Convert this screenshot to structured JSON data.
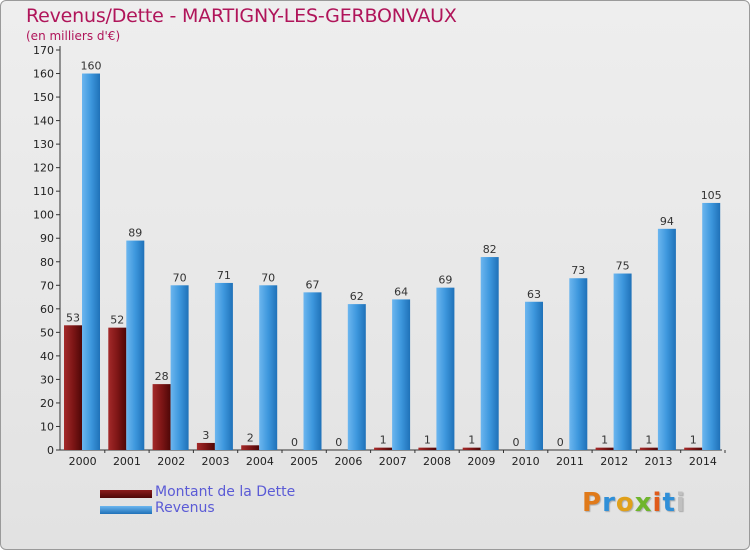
{
  "page": {
    "title": "Revenus/Dette - MARTIGNY-LES-GERBONVAUX",
    "subtitle": "(en milliers d'€)",
    "logo": "Proxiti"
  },
  "colors": {
    "dette": "#7a1414",
    "revenus": "#3d97dd",
    "title": "#b0155a",
    "legend_text": "#5b5bd6"
  },
  "chart_data": {
    "type": "bar",
    "title": "Revenus/Dette - MARTIGNY-LES-GERBONVAUX",
    "subtitle": "(en milliers d'€)",
    "categories": [
      "2000",
      "2001",
      "2002",
      "2003",
      "2004",
      "2005",
      "2006",
      "2007",
      "2008",
      "2009",
      "2010",
      "2011",
      "2012",
      "2013",
      "2014"
    ],
    "series": [
      {
        "name": "Montant de la Dette",
        "values": [
          53,
          52,
          28,
          3,
          2,
          0,
          0,
          1,
          1,
          1,
          0,
          0,
          1,
          1,
          1
        ]
      },
      {
        "name": "Revenus",
        "values": [
          160,
          89,
          70,
          71,
          70,
          67,
          62,
          64,
          69,
          82,
          63,
          73,
          75,
          94,
          105
        ]
      }
    ],
    "ylim": [
      0,
      170
    ],
    "yticks": [
      0,
      10,
      20,
      30,
      40,
      50,
      60,
      70,
      80,
      90,
      100,
      110,
      120,
      130,
      140,
      150,
      160,
      170
    ],
    "grid": false,
    "legend": "bottom-left"
  }
}
